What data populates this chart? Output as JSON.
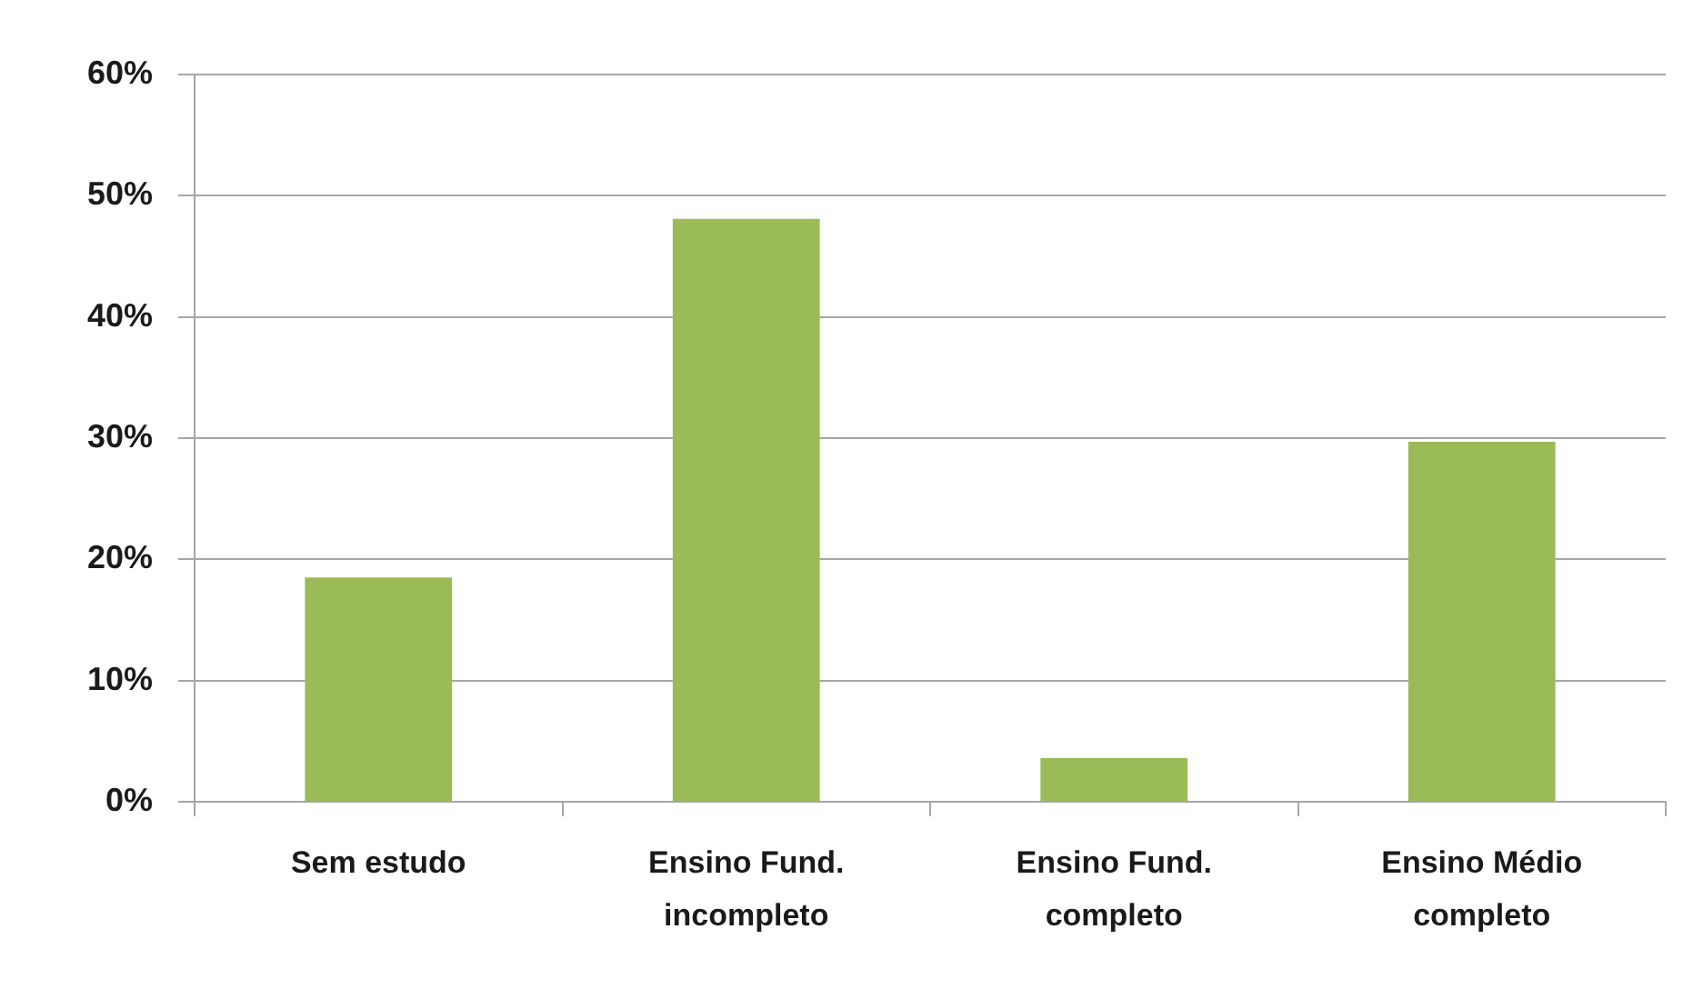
{
  "chart_data": {
    "type": "bar",
    "categories": [
      "Sem estudo",
      "Ensino Fund. incompleto",
      "Ensino Fund. completo",
      "Ensino Médio completo"
    ],
    "values": [
      18.5,
      48.1,
      3.6,
      29.7
    ],
    "color": "#9bbb59",
    "ylim": [
      0,
      60
    ],
    "yticks": [
      {
        "value": 0,
        "label": "0%"
      },
      {
        "value": 10,
        "label": "10%"
      },
      {
        "value": 20,
        "label": "20%"
      },
      {
        "value": 30,
        "label": "30%"
      },
      {
        "value": 40,
        "label": "40%"
      },
      {
        "value": 50,
        "label": "50%"
      },
      {
        "value": 60,
        "label": "60%"
      }
    ],
    "grid": "y",
    "legend": false
  }
}
